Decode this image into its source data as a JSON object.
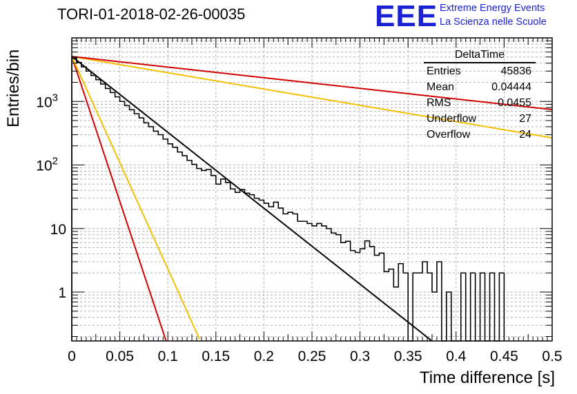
{
  "title": "TORI-01-2018-02-26-00035",
  "logo": {
    "mark": "EEE",
    "line1": "Extreme Energy Events",
    "line2": "La Scienza nelle Scuole",
    "color": "#1a22d4"
  },
  "stats_box": {
    "name": "DeltaTime",
    "rows": [
      {
        "label": "Entries",
        "value": "45836"
      },
      {
        "label": "Mean",
        "value": "0.04444"
      },
      {
        "label": "RMS",
        "value": "0.0455"
      },
      {
        "label": "Underflow",
        "value": "27"
      },
      {
        "label": "Overflow",
        "value": "24"
      }
    ]
  },
  "chart_data": {
    "type": "line",
    "xlabel": "Time difference [s]",
    "ylabel": "Entries/bin",
    "xlim": [
      0,
      0.5
    ],
    "ylim": [
      0.17,
      10000
    ],
    "yscale": "log",
    "grid": true,
    "x_ticks": [
      "0",
      "0.05",
      "0.1",
      "0.15",
      "0.2",
      "0.25",
      "0.3",
      "0.35",
      "0.4",
      "0.45",
      "0.5"
    ],
    "y_ticks": [
      {
        "value": 1,
        "label": "1"
      },
      {
        "value": 10,
        "label": "10"
      },
      {
        "value": 100,
        "label": "10^2"
      },
      {
        "value": 1000,
        "label": "10^3"
      }
    ],
    "histogram": {
      "name": "DeltaTime",
      "bin_width": 0.005,
      "color": "#000000",
      "counts": [
        4800,
        4100,
        3500,
        3000,
        2560,
        2200,
        1880,
        1600,
        1380,
        1180,
        1000,
        860,
        740,
        640,
        550,
        460,
        400,
        340,
        300,
        255,
        215,
        190,
        160,
        140,
        118,
        102,
        88,
        82,
        85,
        68,
        50,
        60,
        53,
        42,
        37,
        41,
        36,
        34,
        30,
        28,
        25,
        22,
        26,
        21,
        17,
        18,
        17,
        13,
        13,
        12,
        11,
        12,
        11,
        10,
        8.5,
        8,
        6,
        6.3,
        4.5,
        4.2,
        4.8,
        6.4,
        5.2,
        3.8,
        4.1,
        2.1,
        2.3,
        1.2,
        2.8,
        2,
        0,
        2,
        2,
        3,
        2,
        1,
        3,
        0,
        1,
        0,
        0,
        2,
        0,
        2,
        0,
        2,
        0,
        2,
        0,
        2
      ]
    },
    "fits": [
      {
        "name": "fit",
        "color": "#000000",
        "amplitude": 5100,
        "slope": 27.5
      },
      {
        "name": "upper-fast",
        "color": "#f5c000",
        "amplitude": 5100,
        "slope": 5.9
      },
      {
        "name": "upper-slow",
        "color": "#d40000",
        "amplitude": 5100,
        "slope": 3.85
      },
      {
        "name": "lower-fast",
        "color": "#d40000",
        "amplitude": 5100,
        "slope": 105
      },
      {
        "name": "lower-slow",
        "color": "#f5c000",
        "amplitude": 5100,
        "slope": 77
      }
    ]
  }
}
